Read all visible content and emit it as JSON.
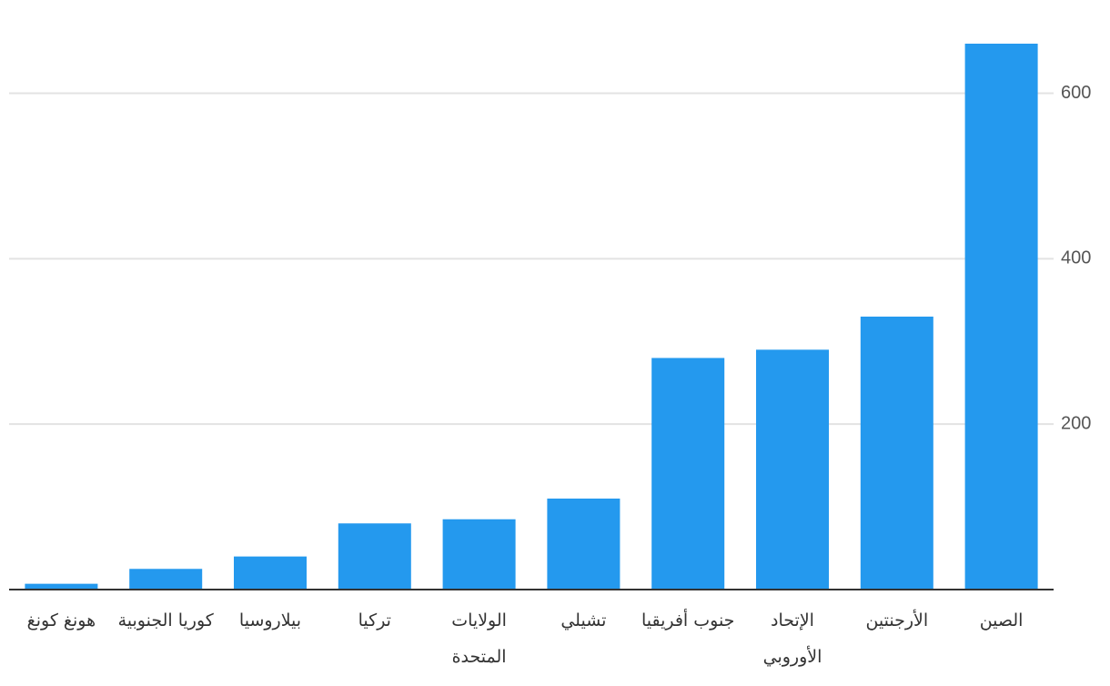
{
  "chart_data": {
    "type": "bar",
    "categories": [
      "هونغ كونغ",
      "كوريا الجنوبية",
      "بيلاروسيا",
      "تركيا",
      "الولايات المتحدة",
      "تشيلي",
      "جنوب أفريقيا",
      "الإتحاد الأوروبي",
      "الأرجنتين",
      "الصين"
    ],
    "values": [
      7,
      25,
      40,
      80,
      85,
      110,
      280,
      290,
      330,
      660
    ],
    "color": "#2499ee",
    "ylim": [
      0,
      660
    ],
    "yticks": [
      200,
      400,
      600
    ],
    "grid": true
  }
}
